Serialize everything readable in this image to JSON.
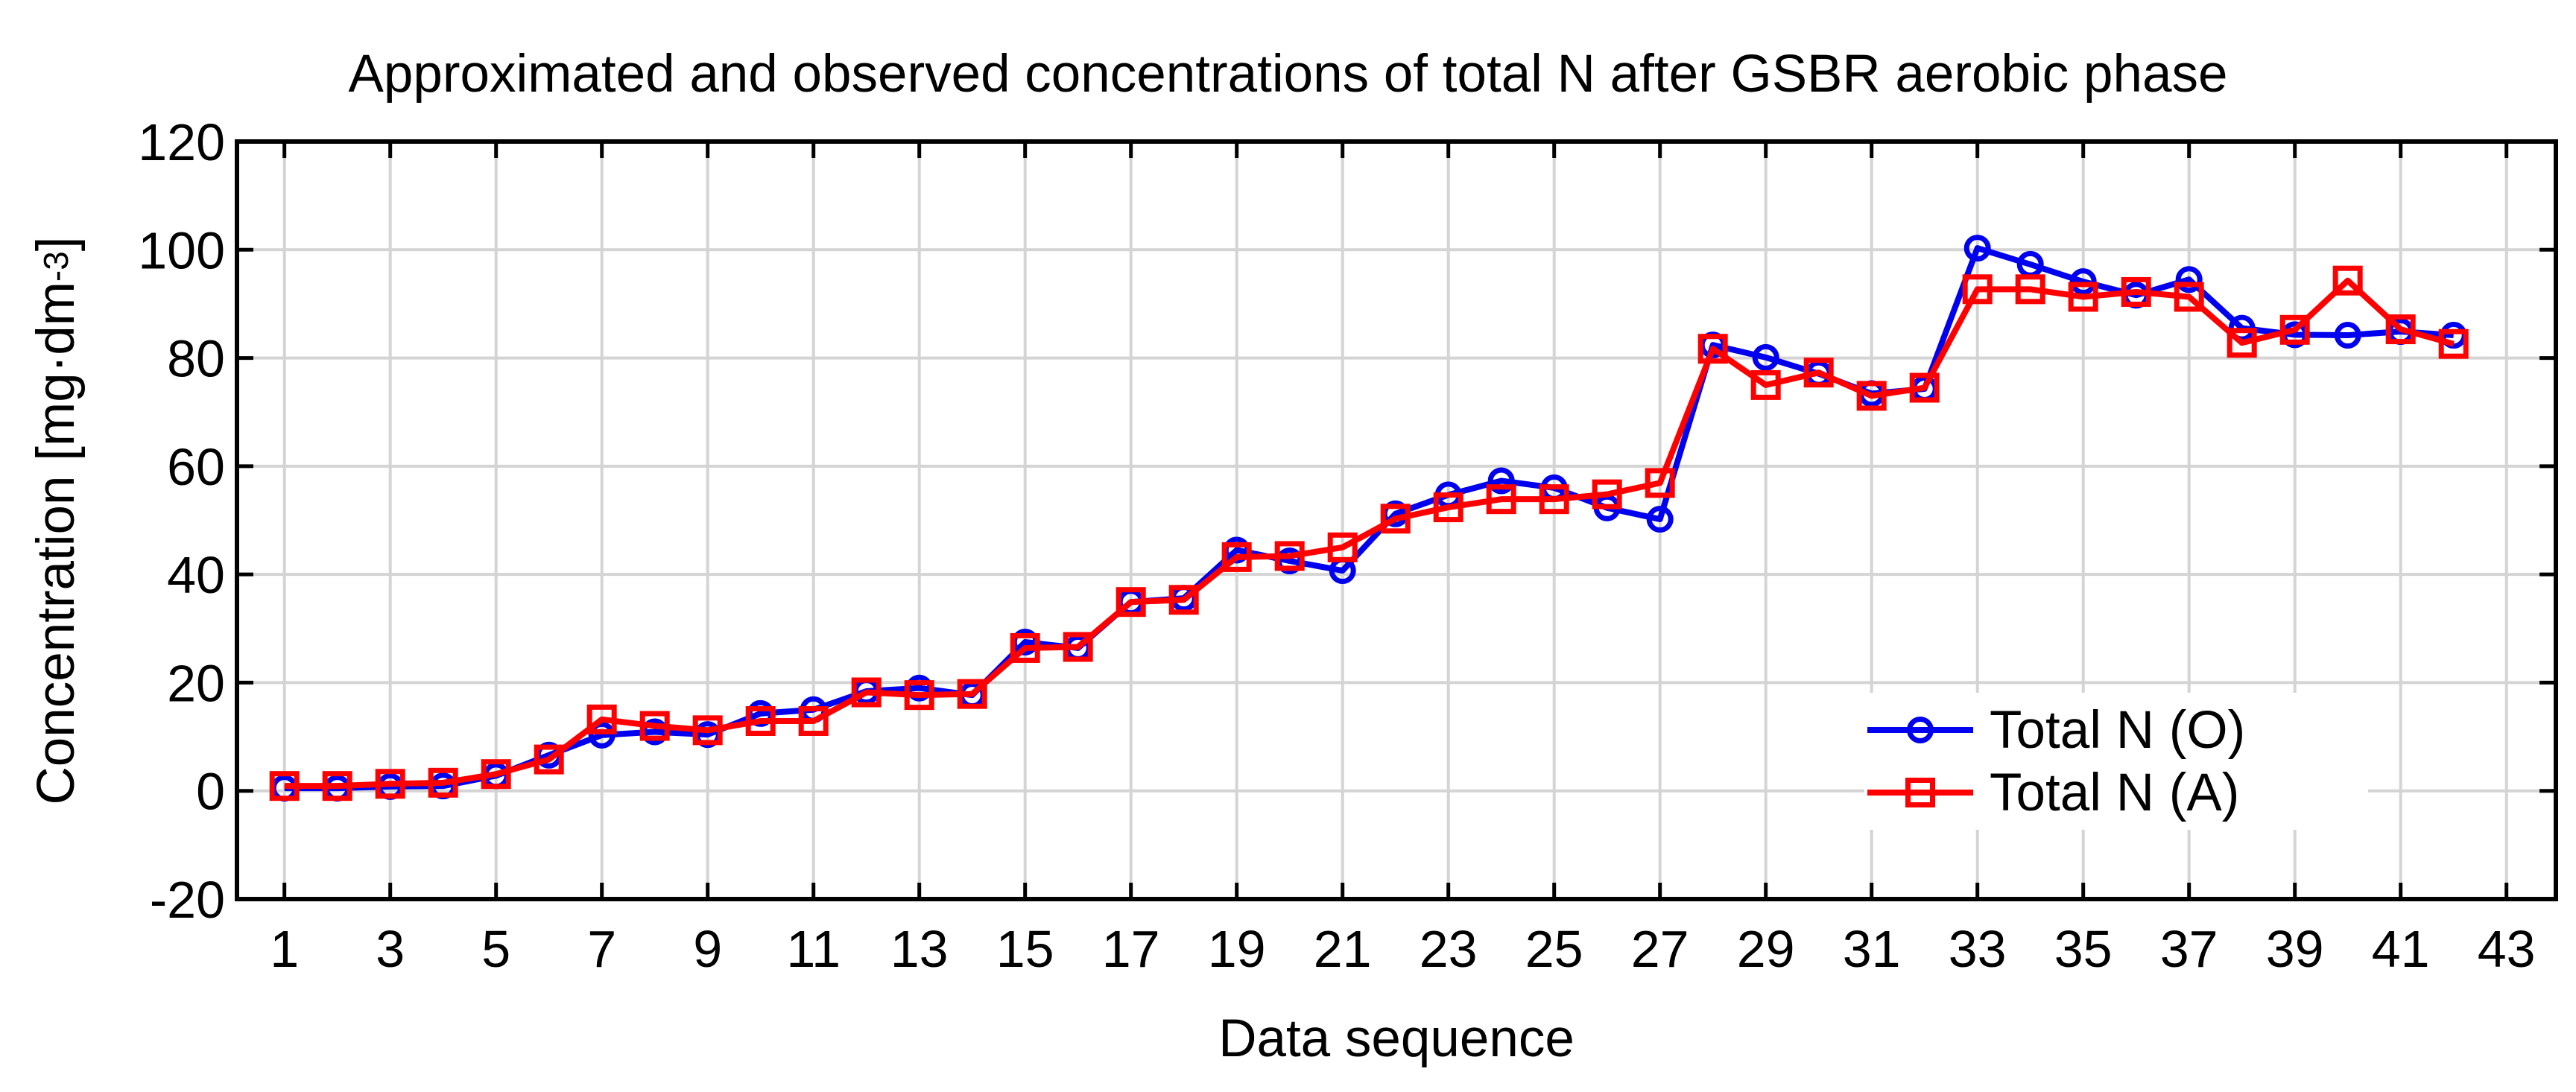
{
  "title": "Approximated and observed concentrations of total N after GSBR aerobic phase",
  "x_axis": {
    "label": "Data sequence"
  },
  "y_axis": {
    "label_main": "Concentration [mg·dm",
    "label_sup": "-3",
    "label_close": "]"
  },
  "legend": {
    "items": [
      {
        "label": "Total N (O)",
        "color": "#0000ee",
        "marker": "circle"
      },
      {
        "label": "Total N (A)",
        "color": "#ff0000",
        "marker": "square"
      }
    ]
  },
  "colors": {
    "series_observed": "#0000ee",
    "series_approximated": "#ff0000",
    "grid": "#d4d4d4",
    "axis": "#000000",
    "background": "#ffffff"
  },
  "chart_data": {
    "type": "line",
    "title": "Approximated and observed concentrations of total N after GSBR aerobic phase",
    "xlabel": "Data sequence",
    "ylabel": "Concentration [mg·dm^-3]",
    "xlim": [
      0,
      44
    ],
    "ylim": [
      -20,
      120
    ],
    "x_ticks": [
      1,
      3,
      5,
      7,
      9,
      11,
      13,
      15,
      17,
      19,
      21,
      23,
      25,
      27,
      29,
      31,
      33,
      35,
      37,
      39,
      41,
      43
    ],
    "y_ticks": [
      -20,
      0,
      20,
      40,
      60,
      80,
      100,
      120
    ],
    "grid": true,
    "legend_position": "inside-bottom-right",
    "x": [
      1,
      2,
      3,
      4,
      5,
      6,
      7,
      8,
      9,
      10,
      11,
      12,
      13,
      14,
      15,
      16,
      17,
      18,
      19,
      20,
      21,
      22,
      23,
      24,
      25,
      26,
      27,
      28,
      29,
      30,
      31,
      32,
      33,
      34,
      35,
      36,
      37,
      38,
      39,
      40,
      41,
      42
    ],
    "series": [
      {
        "name": "Total N (O)",
        "marker": "circle",
        "color": "#0000ee",
        "values": [
          0.5,
          0.5,
          0.8,
          0.9,
          2.8,
          6.6,
          10.3,
          10.9,
          10.4,
          14.3,
          15.0,
          18.4,
          19.0,
          17.7,
          27.5,
          26.4,
          34.9,
          35.6,
          44.5,
          42.5,
          40.7,
          51.2,
          54.7,
          57.3,
          56.0,
          52.3,
          50.2,
          82.4,
          80.1,
          77.1,
          73.4,
          74.3,
          100.3,
          97.3,
          94.1,
          91.6,
          94.5,
          85.5,
          84.3,
          84.2,
          84.9,
          84.2
        ]
      },
      {
        "name": "Total N (A)",
        "marker": "square",
        "color": "#ff0000",
        "values": [
          0.9,
          0.9,
          1.3,
          1.5,
          3.1,
          5.8,
          13.2,
          12.0,
          11.2,
          12.9,
          12.9,
          18.2,
          17.7,
          17.9,
          26.4,
          26.6,
          34.9,
          35.3,
          43.2,
          43.4,
          45.0,
          50.3,
          52.4,
          53.9,
          53.9,
          54.8,
          56.9,
          81.7,
          75.0,
          77.3,
          73.0,
          74.5,
          92.7,
          92.7,
          91.3,
          92.2,
          91.3,
          82.8,
          85.2,
          94.3,
          85.3,
          82.6
        ]
      }
    ]
  }
}
